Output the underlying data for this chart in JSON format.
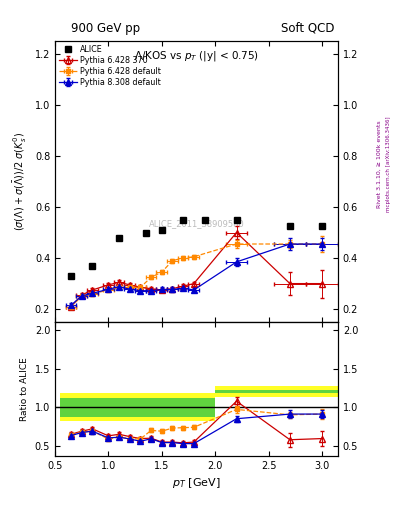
{
  "title_top": "900 GeV pp",
  "title_right": "Soft QCD",
  "ylabel_main": "(σ(Λ)+σ(Λ̅))/2 σ(K⁰ₛ)",
  "ylabel_ratio": "Ratio to ALICE",
  "xlabel": "p_{T} [GeV]",
  "subtitle": "Λ/KOS vs p_{T} (|y| < 0.75)",
  "watermark": "ALICE_2011_S8909580",
  "rivet_label": "Rivet 3.1.10, ≥ 100k events",
  "mcplots_label": "mcplots.cern.ch [arXiv:1306.3436]",
  "alice_x": [
    0.65,
    0.85,
    1.1,
    1.35,
    1.5,
    1.7,
    1.9,
    2.2,
    2.7,
    3.0
  ],
  "alice_y": [
    0.33,
    0.37,
    0.48,
    0.5,
    0.51,
    0.55,
    0.55,
    0.55,
    0.525,
    0.525
  ],
  "p6_370_x": [
    0.65,
    0.75,
    0.85,
    1.0,
    1.1,
    1.2,
    1.3,
    1.4,
    1.5,
    1.6,
    1.7,
    1.8,
    2.2,
    2.7,
    3.0
  ],
  "p6_370_y": [
    0.21,
    0.255,
    0.275,
    0.295,
    0.305,
    0.295,
    0.285,
    0.28,
    0.275,
    0.28,
    0.29,
    0.3,
    0.5,
    0.3,
    0.3
  ],
  "p6_370_yerr": [
    0.008,
    0.008,
    0.008,
    0.008,
    0.008,
    0.008,
    0.008,
    0.008,
    0.008,
    0.008,
    0.008,
    0.008,
    0.025,
    0.045,
    0.055
  ],
  "p6_370_xerr": [
    0.05,
    0.05,
    0.05,
    0.05,
    0.05,
    0.05,
    0.05,
    0.05,
    0.05,
    0.05,
    0.05,
    0.05,
    0.1,
    0.15,
    0.15
  ],
  "p6_def_x": [
    0.65,
    0.75,
    0.85,
    1.0,
    1.1,
    1.2,
    1.3,
    1.4,
    1.5,
    1.6,
    1.7,
    1.8,
    2.2,
    2.7,
    3.0
  ],
  "p6_def_y": [
    0.21,
    0.25,
    0.26,
    0.275,
    0.285,
    0.285,
    0.285,
    0.325,
    0.345,
    0.39,
    0.4,
    0.405,
    0.455,
    0.455,
    0.455
  ],
  "p6_def_yerr": [
    0.008,
    0.008,
    0.008,
    0.008,
    0.008,
    0.008,
    0.008,
    0.008,
    0.008,
    0.008,
    0.008,
    0.008,
    0.015,
    0.015,
    0.03
  ],
  "p6_def_xerr": [
    0.05,
    0.05,
    0.05,
    0.05,
    0.05,
    0.05,
    0.05,
    0.05,
    0.05,
    0.05,
    0.05,
    0.05,
    0.1,
    0.15,
    0.15
  ],
  "p8_def_x": [
    0.65,
    0.75,
    0.85,
    1.0,
    1.1,
    1.2,
    1.3,
    1.4,
    1.5,
    1.6,
    1.7,
    1.8,
    2.2,
    2.7,
    3.0
  ],
  "p8_def_y": [
    0.215,
    0.252,
    0.262,
    0.278,
    0.288,
    0.278,
    0.272,
    0.272,
    0.277,
    0.277,
    0.282,
    0.275,
    0.385,
    0.455,
    0.455
  ],
  "p8_def_yerr": [
    0.008,
    0.008,
    0.008,
    0.008,
    0.008,
    0.008,
    0.008,
    0.008,
    0.008,
    0.008,
    0.008,
    0.008,
    0.015,
    0.025,
    0.025
  ],
  "p8_def_xerr": [
    0.05,
    0.05,
    0.05,
    0.05,
    0.05,
    0.05,
    0.05,
    0.05,
    0.05,
    0.05,
    0.05,
    0.05,
    0.1,
    0.15,
    0.15
  ],
  "ratio_p6_370_x": [
    0.65,
    0.75,
    0.85,
    1.0,
    1.1,
    1.2,
    1.3,
    1.4,
    1.5,
    1.6,
    1.7,
    1.8,
    2.2,
    2.7,
    3.0
  ],
  "ratio_p6_370_y": [
    0.655,
    0.695,
    0.725,
    0.635,
    0.655,
    0.625,
    0.6,
    0.605,
    0.555,
    0.555,
    0.545,
    0.555,
    1.08,
    0.585,
    0.6
  ],
  "ratio_p6_370_yerr": [
    0.03,
    0.03,
    0.03,
    0.025,
    0.025,
    0.025,
    0.025,
    0.025,
    0.025,
    0.025,
    0.025,
    0.025,
    0.06,
    0.09,
    0.1
  ],
  "ratio_p6_def_x": [
    0.65,
    0.75,
    0.85,
    1.0,
    1.1,
    1.2,
    1.3,
    1.4,
    1.5,
    1.6,
    1.7,
    1.8,
    2.2,
    2.7,
    3.0
  ],
  "ratio_p6_def_y": [
    0.645,
    0.685,
    0.695,
    0.595,
    0.62,
    0.6,
    0.595,
    0.705,
    0.695,
    0.735,
    0.74,
    0.745,
    0.975,
    0.905,
    0.915
  ],
  "ratio_p6_def_yerr": [
    0.03,
    0.03,
    0.03,
    0.025,
    0.025,
    0.025,
    0.025,
    0.025,
    0.025,
    0.025,
    0.025,
    0.025,
    0.04,
    0.04,
    0.06
  ],
  "ratio_p8_def_x": [
    0.65,
    0.75,
    0.85,
    1.0,
    1.1,
    1.2,
    1.3,
    1.4,
    1.5,
    1.6,
    1.7,
    1.8,
    2.2,
    2.7,
    3.0
  ],
  "ratio_p8_def_y": [
    0.638,
    0.678,
    0.695,
    0.608,
    0.618,
    0.595,
    0.565,
    0.598,
    0.548,
    0.548,
    0.535,
    0.535,
    0.855,
    0.915,
    0.915
  ],
  "ratio_p8_def_yerr": [
    0.03,
    0.03,
    0.03,
    0.025,
    0.025,
    0.025,
    0.025,
    0.025,
    0.025,
    0.025,
    0.025,
    0.025,
    0.04,
    0.05,
    0.055
  ],
  "color_alice": "#000000",
  "color_p6_370": "#cc0000",
  "color_p6_def": "#ff8800",
  "color_p8_def": "#0000cc",
  "color_yellow": "#ffff00",
  "color_green": "#44cc44",
  "xlim": [
    0.55,
    3.15
  ],
  "ylim_main": [
    0.15,
    1.25
  ],
  "ylim_ratio": [
    0.38,
    2.1
  ],
  "yticks_main": [
    0.2,
    0.4,
    0.6,
    0.8,
    1.0,
    1.2
  ],
  "yticks_ratio": [
    0.5,
    1.0,
    1.5,
    2.0
  ],
  "xticks": [
    0.5,
    1.0,
    1.5,
    2.0,
    2.5,
    3.0
  ]
}
